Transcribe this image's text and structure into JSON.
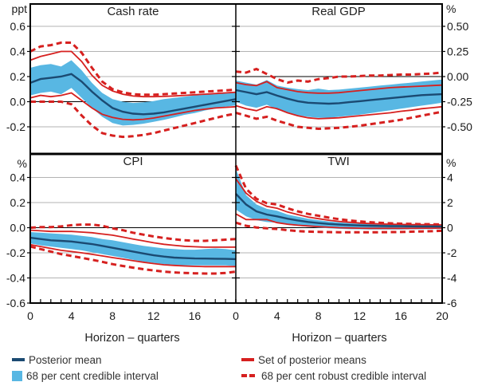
{
  "figure": {
    "xlabel": "Horizon – quarters"
  },
  "colors": {
    "mean_line": "#1b4a72",
    "band": "#58b7e3",
    "interval_red": "#d6201f",
    "grid": "#b3b3b3",
    "axis": "#000000"
  },
  "legend": {
    "posterior_mean": "Posterior mean",
    "credible_interval": "68 per cent credible interval",
    "set_of_posterior_means": "Set of posterior means",
    "robust_credible_interval": "68 per cent robust credible interval"
  },
  "chart_data": {
    "type": "line",
    "x_max": 20,
    "x": [
      0,
      1,
      2,
      3,
      4,
      5,
      6,
      7,
      8,
      9,
      10,
      11,
      12,
      13,
      14,
      15,
      16,
      17,
      18,
      19,
      20
    ],
    "panels": [
      {
        "id": "cash-rate",
        "title": "Cash rate",
        "unit": "ppt",
        "row": 0,
        "col": 0,
        "axis_side": "left",
        "y_ticks": {
          "labels": [
            "0.6",
            "0.4",
            "0.2",
            "0.0",
            "-0.2"
          ],
          "values": [
            0.6,
            0.4,
            0.2,
            0.0,
            -0.2
          ]
        },
        "x_ticks": {
          "labels": [],
          "values": []
        },
        "series": {
          "posterior_mean": [
            0.15,
            0.18,
            0.19,
            0.2,
            0.22,
            0.16,
            0.08,
            0.01,
            -0.05,
            -0.08,
            -0.095,
            -0.1,
            -0.095,
            -0.085,
            -0.07,
            -0.055,
            -0.04,
            -0.025,
            -0.01,
            0.005,
            0.02
          ],
          "ci68_upper": [
            0.27,
            0.29,
            0.3,
            0.28,
            0.33,
            0.25,
            0.15,
            0.07,
            0.02,
            0.0,
            -0.01,
            -0.005,
            0.005,
            0.02,
            0.03,
            0.04,
            0.05,
            0.055,
            0.06,
            0.065,
            0.07
          ],
          "ci68_lower": [
            0.05,
            0.07,
            0.08,
            0.06,
            0.11,
            0.03,
            -0.05,
            -0.12,
            -0.17,
            -0.19,
            -0.185,
            -0.175,
            -0.16,
            -0.145,
            -0.125,
            -0.105,
            -0.09,
            -0.07,
            -0.055,
            -0.04,
            -0.03
          ],
          "set_means_upper": [
            0.33,
            0.36,
            0.38,
            0.4,
            0.4,
            0.32,
            0.21,
            0.13,
            0.085,
            0.06,
            0.045,
            0.04,
            0.04,
            0.042,
            0.046,
            0.05,
            0.055,
            0.06,
            0.065,
            0.07,
            0.075
          ],
          "set_means_lower": [
            0.03,
            0.05,
            0.04,
            0.05,
            0.07,
            0.01,
            -0.05,
            -0.1,
            -0.125,
            -0.14,
            -0.145,
            -0.14,
            -0.13,
            -0.115,
            -0.1,
            -0.085,
            -0.07,
            -0.06,
            -0.05,
            -0.045,
            -0.04
          ],
          "robust_ci_upper": [
            0.4,
            0.44,
            0.45,
            0.47,
            0.47,
            0.39,
            0.27,
            0.16,
            0.1,
            0.075,
            0.06,
            0.055,
            0.055,
            0.06,
            0.065,
            0.07,
            0.075,
            0.08,
            0.085,
            0.09,
            0.095
          ],
          "robust_ci_lower": [
            0.0,
            0.0,
            0.0,
            0.0,
            -0.02,
            -0.11,
            -0.19,
            -0.25,
            -0.27,
            -0.28,
            -0.275,
            -0.265,
            -0.25,
            -0.23,
            -0.21,
            -0.19,
            -0.17,
            -0.15,
            -0.13,
            -0.11,
            -0.095
          ]
        }
      },
      {
        "id": "real-gdp",
        "title": "Real GDP",
        "unit": "%",
        "row": 0,
        "col": 1,
        "axis_side": "right",
        "y_ticks": {
          "labels": [
            "0.50",
            "0.25",
            "0.00",
            "-0.25",
            "-0.50"
          ],
          "values": [
            0.5,
            0.25,
            0.0,
            -0.25,
            -0.5
          ]
        },
        "x_ticks": {
          "labels": [],
          "values": []
        },
        "series": {
          "posterior_mean": [
            -0.135,
            -0.155,
            -0.175,
            -0.155,
            -0.19,
            -0.22,
            -0.245,
            -0.26,
            -0.265,
            -0.27,
            -0.265,
            -0.255,
            -0.245,
            -0.235,
            -0.225,
            -0.215,
            -0.205,
            -0.195,
            -0.185,
            -0.18,
            -0.175
          ],
          "ci68_upper": [
            -0.04,
            -0.06,
            -0.08,
            -0.035,
            -0.09,
            -0.11,
            -0.125,
            -0.135,
            -0.12,
            -0.135,
            -0.13,
            -0.12,
            -0.11,
            -0.1,
            -0.09,
            -0.08,
            -0.07,
            -0.06,
            -0.05,
            -0.04,
            -0.03
          ],
          "ci68_lower": [
            -0.25,
            -0.29,
            -0.31,
            -0.28,
            -0.33,
            -0.36,
            -0.385,
            -0.4,
            -0.41,
            -0.41,
            -0.4,
            -0.39,
            -0.38,
            -0.365,
            -0.35,
            -0.335,
            -0.32,
            -0.305,
            -0.29,
            -0.275,
            -0.26
          ],
          "set_means_upper": [
            -0.06,
            -0.08,
            -0.09,
            -0.05,
            -0.11,
            -0.13,
            -0.15,
            -0.16,
            -0.165,
            -0.165,
            -0.16,
            -0.15,
            -0.14,
            -0.13,
            -0.12,
            -0.11,
            -0.105,
            -0.1,
            -0.095,
            -0.09,
            -0.085
          ],
          "set_means_lower": [
            -0.29,
            -0.32,
            -0.34,
            -0.3,
            -0.32,
            -0.36,
            -0.39,
            -0.41,
            -0.42,
            -0.415,
            -0.41,
            -0.4,
            -0.39,
            -0.38,
            -0.37,
            -0.36,
            -0.345,
            -0.335,
            -0.32,
            -0.31,
            -0.3
          ],
          "robust_ci_upper": [
            0.05,
            0.04,
            0.075,
            0.025,
            -0.025,
            -0.06,
            -0.04,
            -0.05,
            -0.025,
            -0.015,
            0.0,
            0.0,
            0.005,
            0.01,
            0.01,
            0.015,
            0.02,
            0.02,
            0.025,
            0.03,
            0.04
          ],
          "robust_ci_lower": [
            -0.36,
            -0.39,
            -0.42,
            -0.4,
            -0.44,
            -0.47,
            -0.5,
            -0.51,
            -0.52,
            -0.515,
            -0.51,
            -0.5,
            -0.49,
            -0.475,
            -0.46,
            -0.445,
            -0.43,
            -0.41,
            -0.39,
            -0.37,
            -0.35
          ]
        }
      },
      {
        "id": "cpi",
        "title": "CPI",
        "unit": "%",
        "row": 1,
        "col": 0,
        "axis_side": "left",
        "y_ticks": {
          "labels": [
            "0.4",
            "0.2",
            "0.0",
            "-0.2",
            "-0.4",
            "-0.6"
          ],
          "values": [
            0.4,
            0.2,
            0.0,
            -0.2,
            -0.4,
            -0.6
          ]
        },
        "x_ticks": {
          "labels": [
            "0",
            "4",
            "8",
            "12",
            "16"
          ],
          "values": [
            0,
            4,
            8,
            12,
            16
          ]
        },
        "series": {
          "posterior_mean": [
            -0.08,
            -0.09,
            -0.1,
            -0.105,
            -0.11,
            -0.12,
            -0.13,
            -0.145,
            -0.16,
            -0.175,
            -0.19,
            -0.205,
            -0.22,
            -0.23,
            -0.238,
            -0.242,
            -0.245,
            -0.246,
            -0.247,
            -0.248,
            -0.25
          ],
          "ci68_upper": [
            -0.035,
            -0.04,
            -0.045,
            -0.05,
            -0.055,
            -0.065,
            -0.075,
            -0.09,
            -0.1,
            -0.115,
            -0.13,
            -0.145,
            -0.155,
            -0.165,
            -0.17,
            -0.175,
            -0.175,
            -0.17,
            -0.165,
            -0.17,
            -0.18
          ],
          "ci68_lower": [
            -0.125,
            -0.14,
            -0.15,
            -0.16,
            -0.17,
            -0.18,
            -0.195,
            -0.21,
            -0.225,
            -0.24,
            -0.255,
            -0.27,
            -0.28,
            -0.29,
            -0.295,
            -0.3,
            -0.3,
            -0.3,
            -0.3,
            -0.3,
            -0.305
          ],
          "set_means_upper": [
            -0.02,
            -0.025,
            -0.03,
            -0.03,
            -0.03,
            -0.035,
            -0.04,
            -0.05,
            -0.06,
            -0.075,
            -0.09,
            -0.105,
            -0.12,
            -0.132,
            -0.14,
            -0.148,
            -0.152,
            -0.155,
            -0.155,
            -0.155,
            -0.155
          ],
          "set_means_lower": [
            -0.135,
            -0.15,
            -0.165,
            -0.18,
            -0.19,
            -0.2,
            -0.212,
            -0.225,
            -0.238,
            -0.25,
            -0.263,
            -0.275,
            -0.286,
            -0.295,
            -0.3,
            -0.305,
            -0.308,
            -0.31,
            -0.31,
            -0.31,
            -0.31
          ],
          "robust_ci_upper": [
            0.0,
            0.005,
            0.005,
            0.01,
            0.02,
            0.025,
            0.025,
            0.015,
            -0.005,
            -0.02,
            -0.04,
            -0.055,
            -0.07,
            -0.082,
            -0.092,
            -0.1,
            -0.105,
            -0.105,
            -0.1,
            -0.095,
            -0.09
          ],
          "robust_ci_lower": [
            -0.15,
            -0.17,
            -0.19,
            -0.21,
            -0.225,
            -0.24,
            -0.255,
            -0.272,
            -0.29,
            -0.305,
            -0.318,
            -0.33,
            -0.34,
            -0.35,
            -0.356,
            -0.36,
            -0.363,
            -0.365,
            -0.365,
            -0.36,
            -0.35
          ]
        }
      },
      {
        "id": "twi",
        "title": "TWI",
        "unit": "%",
        "row": 1,
        "col": 1,
        "axis_side": "right",
        "y_ticks": {
          "labels": [
            "4",
            "2",
            "0",
            "-2",
            "-4",
            "-6"
          ],
          "values": [
            4,
            2,
            0,
            -2,
            -4,
            -6
          ]
        },
        "x_ticks": {
          "labels": [
            "0",
            "4",
            "8",
            "12",
            "16",
            "20"
          ],
          "values": [
            0,
            4,
            8,
            12,
            16,
            20
          ]
        },
        "series": {
          "posterior_mean": [
            2.7,
            1.85,
            1.3,
            1.05,
            0.9,
            0.72,
            0.58,
            0.46,
            0.37,
            0.3,
            0.25,
            0.21,
            0.18,
            0.16,
            0.14,
            0.13,
            0.12,
            0.11,
            0.1,
            0.1,
            0.09
          ],
          "ci68_upper": [
            4.7,
            2.6,
            1.85,
            1.5,
            1.35,
            1.05,
            0.88,
            0.72,
            0.6,
            0.5,
            0.43,
            0.37,
            0.32,
            0.29,
            0.26,
            0.24,
            0.23,
            0.22,
            0.21,
            0.21,
            0.2
          ],
          "ci68_lower": [
            1.45,
            0.9,
            0.6,
            0.45,
            0.4,
            0.22,
            0.14,
            0.07,
            0.0,
            -0.05,
            -0.09,
            -0.12,
            -0.13,
            -0.14,
            -0.14,
            -0.14,
            -0.14,
            -0.13,
            -0.12,
            -0.11,
            -0.1
          ],
          "set_means_upper": [
            3.9,
            2.75,
            2.1,
            1.7,
            1.55,
            1.25,
            1.05,
            0.85,
            0.72,
            0.6,
            0.5,
            0.43,
            0.37,
            0.33,
            0.3,
            0.28,
            0.26,
            0.25,
            0.24,
            0.23,
            0.22
          ],
          "set_means_lower": [
            1.1,
            0.65,
            0.65,
            0.65,
            0.4,
            0.28,
            0.2,
            0.14,
            0.09,
            0.04,
            0.0,
            -0.02,
            -0.04,
            -0.05,
            -0.05,
            -0.05,
            -0.05,
            -0.05,
            -0.04,
            -0.04,
            -0.03
          ],
          "robust_ci_upper": [
            4.95,
            3.1,
            2.3,
            1.95,
            1.85,
            1.55,
            1.3,
            1.1,
            0.95,
            0.8,
            0.68,
            0.58,
            0.5,
            0.44,
            0.39,
            0.35,
            0.32,
            0.3,
            0.28,
            0.27,
            0.26
          ],
          "robust_ci_lower": [
            0.4,
            0.15,
            0.02,
            -0.05,
            -0.1,
            -0.2,
            -0.27,
            -0.31,
            -0.33,
            -0.35,
            -0.36,
            -0.37,
            -0.37,
            -0.37,
            -0.36,
            -0.35,
            -0.34,
            -0.32,
            -0.3,
            -0.28,
            -0.25
          ]
        }
      }
    ]
  }
}
